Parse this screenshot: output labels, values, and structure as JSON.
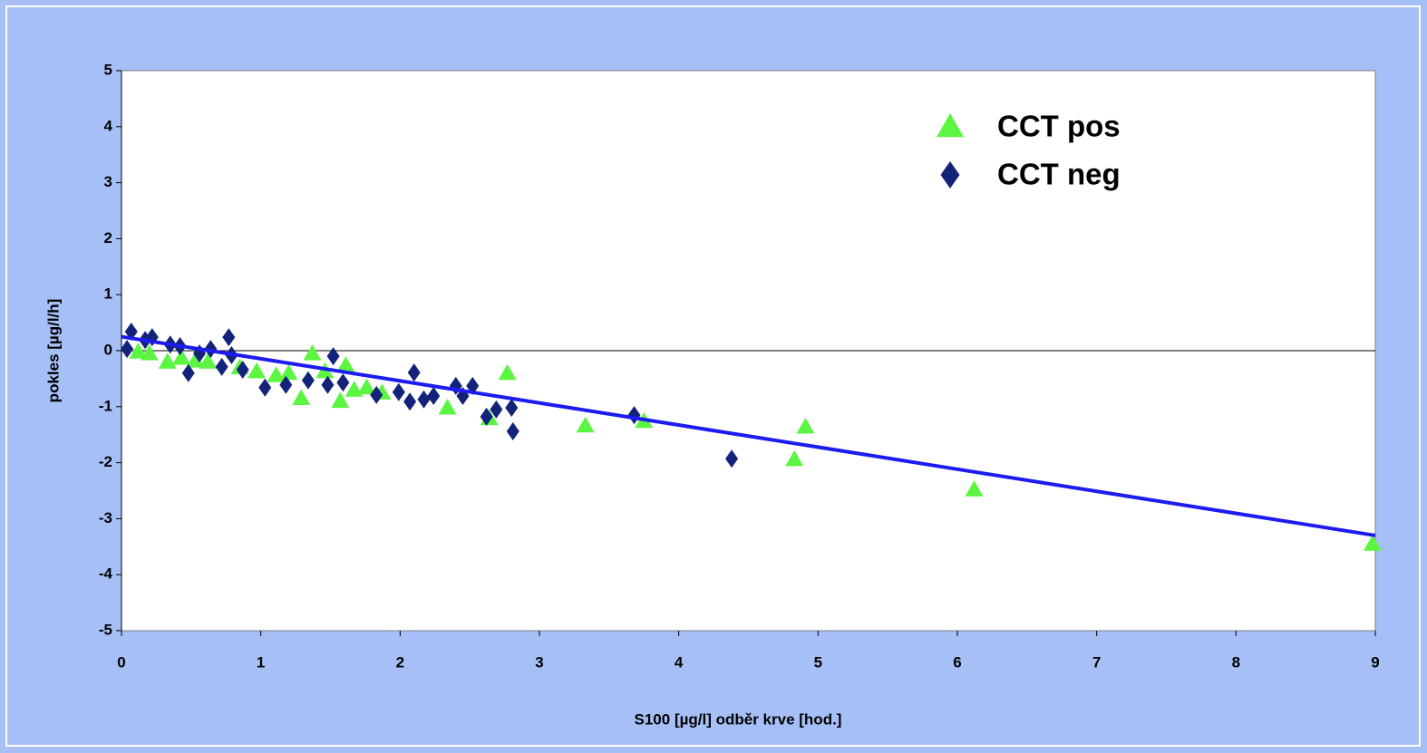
{
  "chart_data": {
    "type": "scatter",
    "x_label": "S100 [µg/l] odběr krve [hod.]",
    "y_label": "pokles [µg/l/h]",
    "xlim": [
      0,
      9
    ],
    "xticks": [
      0,
      1,
      2,
      3,
      4,
      5,
      6,
      7,
      8,
      9
    ],
    "ylim": [
      -5,
      5
    ],
    "yticks": [
      -5,
      -4,
      -3,
      -2,
      -1,
      0,
      1,
      2,
      3,
      4,
      5
    ],
    "legend": "upper right",
    "series": [
      {
        "name": "CCT pos",
        "color": "#5cf542",
        "marker": "triangle",
        "x": [
          0.12,
          0.2,
          0.33,
          0.43,
          0.53,
          0.62,
          0.85,
          0.97,
          1.11,
          1.2,
          1.29,
          1.37,
          1.46,
          1.57,
          1.61,
          1.67,
          1.76,
          1.87,
          2.34,
          2.64,
          2.77,
          3.33,
          3.75,
          4.83,
          4.91,
          6.12,
          8.98
        ],
        "values": [
          -0.02,
          -0.05,
          -0.2,
          -0.13,
          -0.18,
          -0.2,
          -0.3,
          -0.37,
          -0.44,
          -0.4,
          -0.85,
          -0.05,
          -0.37,
          -0.9,
          -0.26,
          -0.7,
          -0.66,
          -0.75,
          -1.02,
          -1.21,
          -0.4,
          -1.34,
          -1.26,
          -1.94,
          -1.36,
          -2.48,
          -3.45
        ]
      },
      {
        "name": "CCT neg",
        "color": "#14237a",
        "marker": "diamond",
        "x": [
          0.04,
          0.07,
          0.17,
          0.22,
          0.35,
          0.42,
          0.48,
          0.56,
          0.64,
          0.72,
          0.77,
          0.79,
          0.87,
          1.03,
          1.18,
          1.34,
          1.52,
          1.48,
          1.59,
          1.83,
          1.99,
          2.07,
          2.1,
          2.17,
          2.24,
          2.4,
          2.45,
          2.52,
          2.62,
          2.69,
          2.8,
          2.81,
          3.68,
          4.38
        ],
        "values": [
          0.03,
          0.34,
          0.19,
          0.24,
          0.11,
          0.08,
          -0.4,
          -0.05,
          0.03,
          -0.29,
          0.24,
          -0.08,
          -0.34,
          -0.66,
          -0.61,
          -0.53,
          -0.1,
          -0.61,
          -0.57,
          -0.79,
          -0.74,
          -0.91,
          -0.39,
          -0.87,
          -0.81,
          -0.63,
          -0.81,
          -0.63,
          -1.18,
          -1.05,
          -1.02,
          -1.44,
          -1.15,
          -1.93
        ]
      }
    ],
    "trendline": {
      "color": "#1c1cf0",
      "x": [
        0,
        9
      ],
      "values": [
        0.25,
        -3.3
      ]
    }
  }
}
